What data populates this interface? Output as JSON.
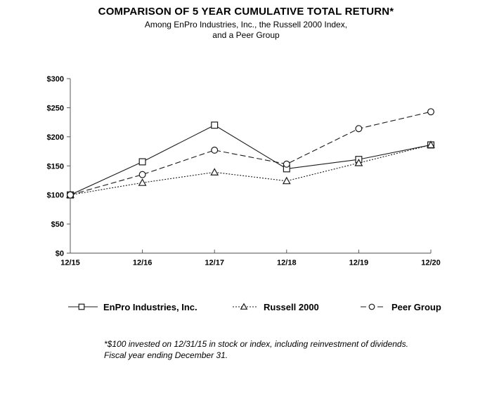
{
  "title": "COMPARISON OF 5 YEAR CUMULATIVE TOTAL RETURN*",
  "subtitle_line1": "Among EnPro Industries, Inc., the Russell 2000 Index,",
  "subtitle_line2": "and a Peer Group",
  "footnote_line1": "*$100 invested on 12/31/15 in stock or index, including reinvestment of dividends.",
  "footnote_line2": "Fiscal year ending December 31.",
  "colors": {
    "background": "#ffffff",
    "text": "#000000",
    "axis": "#595959",
    "series_line": "#1a1a1a",
    "marker_fill": "#ffffff"
  },
  "chart_data": {
    "type": "line",
    "title": "COMPARISON OF 5 YEAR CUMULATIVE TOTAL RETURN*",
    "categories": [
      "12/15",
      "12/16",
      "12/17",
      "12/18",
      "12/19",
      "12/20"
    ],
    "series": [
      {
        "name": "EnPro Industries, Inc.",
        "marker": "square",
        "line_style": "solid",
        "values": [
          100,
          157,
          220,
          145,
          161,
          186
        ]
      },
      {
        "name": "Russell 2000",
        "marker": "triangle",
        "line_style": "dotted",
        "values": [
          100,
          121,
          139,
          124,
          155,
          186
        ]
      },
      {
        "name": "Peer Group",
        "marker": "circle",
        "line_style": "dashed",
        "values": [
          100,
          135,
          177,
          153,
          214,
          243
        ]
      }
    ],
    "xlabel": "",
    "ylabel": "",
    "ylim": [
      0,
      300
    ],
    "y_ticks": [
      0,
      50,
      100,
      150,
      200,
      250,
      300
    ],
    "y_tick_labels": [
      "$0",
      "$50",
      "$100",
      "$150",
      "$200",
      "$250",
      "$300"
    ],
    "grid": false,
    "legend_position": "bottom"
  }
}
